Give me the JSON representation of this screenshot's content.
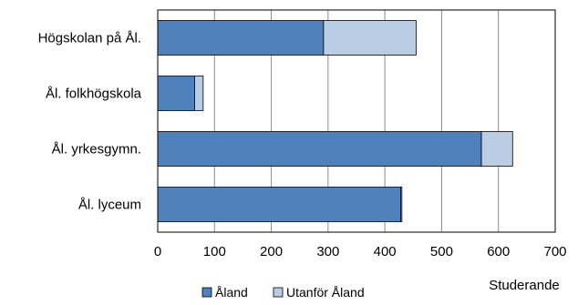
{
  "chart_data": {
    "type": "bar",
    "orientation": "horizontal",
    "stacked": true,
    "categories": [
      "Högskolan på Ål.",
      "Ål. folkhögskola",
      "Ål. yrkesgymn.",
      "Ål. lyceum"
    ],
    "series": [
      {
        "name": "Åland",
        "values": [
          292,
          65,
          570,
          428
        ],
        "color": "#4f81bd"
      },
      {
        "name": "Utanför Åland",
        "values": [
          163,
          15,
          55,
          2
        ],
        "color": "#b9cde5"
      }
    ],
    "xlim": [
      0,
      700
    ],
    "xticks": [
      0,
      100,
      200,
      300,
      400,
      500,
      600,
      700
    ],
    "xlabel": "Studerande",
    "ylabel": "",
    "title": "",
    "grid": "vertical",
    "legend_position": "bottom"
  }
}
